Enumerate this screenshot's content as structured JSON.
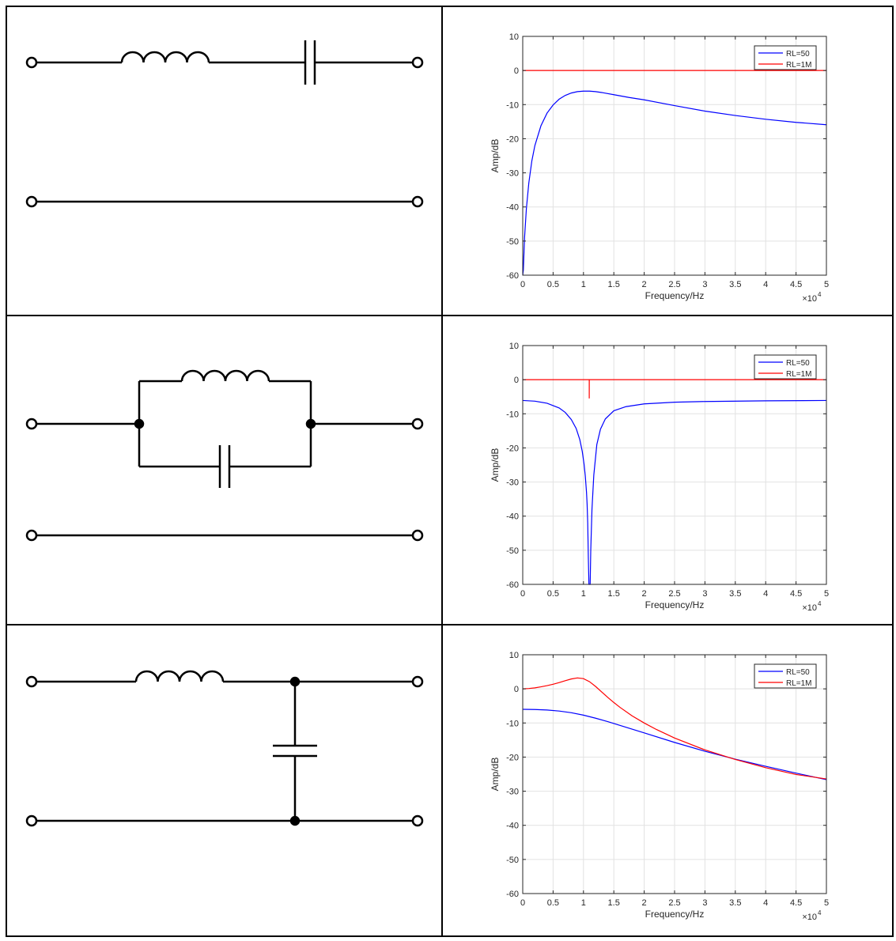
{
  "chart_data": [
    {
      "type": "line",
      "xlabel": "Frequency/Hz",
      "ylabel": "Amp/dB",
      "x_multiplier_label": "×10",
      "x_multiplier_exp": "4",
      "xlim": [
        0,
        50000
      ],
      "ylim": [
        -60,
        10
      ],
      "xticks": [
        0,
        5000,
        10000,
        15000,
        20000,
        25000,
        30000,
        35000,
        40000,
        45000,
        50000
      ],
      "xtick_labels": [
        "0",
        "0.5",
        "1",
        "1.5",
        "2",
        "2.5",
        "3",
        "3.5",
        "4",
        "4.5",
        "5"
      ],
      "yticks": [
        10,
        0,
        -10,
        -20,
        -30,
        -40,
        -50,
        -60
      ],
      "ytick_labels": [
        "10",
        "0",
        "-10",
        "-20",
        "-30",
        "-40",
        "-50",
        "-60"
      ],
      "grid": true,
      "legend_position": "top-right",
      "series": [
        {
          "name": "RL=50",
          "color": "#0000ff",
          "x": [
            0,
            100,
            300,
            600,
            1000,
            1500,
            2000,
            3000,
            4000,
            5000,
            6000,
            7000,
            8000,
            9000,
            10000,
            11000,
            12000,
            13000,
            15000,
            17500,
            20000,
            25000,
            30000,
            35000,
            40000,
            45000,
            50000
          ],
          "y": [
            -60,
            -58.5,
            -49,
            -40.5,
            -33,
            -26.5,
            -22,
            -16.2,
            -12.5,
            -10.1,
            -8.4,
            -7.3,
            -6.6,
            -6.2,
            -6.05,
            -6.05,
            -6.2,
            -6.45,
            -7.1,
            -7.9,
            -8.6,
            -10.3,
            -11.9,
            -13.2,
            -14.3,
            -15.2,
            -15.9
          ]
        },
        {
          "name": "RL=1M",
          "color": "#ff0000",
          "x": [
            0,
            50000
          ],
          "y": [
            0,
            0
          ]
        }
      ]
    },
    {
      "type": "line",
      "xlabel": "Frequency/Hz",
      "ylabel": "Amp/dB",
      "x_multiplier_label": "×10",
      "x_multiplier_exp": "4",
      "xlim": [
        0,
        50000
      ],
      "ylim": [
        -60,
        10
      ],
      "xticks": [
        0,
        5000,
        10000,
        15000,
        20000,
        25000,
        30000,
        35000,
        40000,
        45000,
        50000
      ],
      "xtick_labels": [
        "0",
        "0.5",
        "1",
        "1.5",
        "2",
        "2.5",
        "3",
        "3.5",
        "4",
        "4.5",
        "5"
      ],
      "yticks": [
        10,
        0,
        -10,
        -20,
        -30,
        -40,
        -50,
        -60
      ],
      "ytick_labels": [
        "10",
        "0",
        "-10",
        "-20",
        "-30",
        "-40",
        "-50",
        "-60"
      ],
      "grid": true,
      "legend_position": "top-right",
      "series": [
        {
          "name": "RL=50",
          "color": "#0000ff",
          "x": [
            0,
            2000,
            4000,
            6000,
            7000,
            8000,
            8800,
            9400,
            9800,
            10100,
            10300,
            10500,
            10600,
            10700,
            10800,
            10900,
            11000,
            11100,
            11200,
            11400,
            11700,
            12200,
            12800,
            13600,
            15000,
            17000,
            20000,
            25000,
            30000,
            40000,
            50000
          ],
          "y": [
            -6.1,
            -6.3,
            -6.9,
            -8.3,
            -9.6,
            -11.7,
            -14.3,
            -17.6,
            -21,
            -24.8,
            -28.2,
            -33,
            -36.5,
            -42,
            -52,
            -60,
            -60,
            -60,
            -50,
            -38,
            -28,
            -19,
            -14.5,
            -11.5,
            -9.1,
            -7.9,
            -7.1,
            -6.6,
            -6.4,
            -6.2,
            -6.1
          ]
        },
        {
          "name": "RL=1M",
          "color": "#ff0000",
          "x": [
            0,
            10950,
            10950,
            10950,
            10960,
            50000
          ],
          "y": [
            0,
            0,
            -5.5,
            -5.5,
            0,
            0
          ]
        }
      ]
    },
    {
      "type": "line",
      "xlabel": "Frequency/Hz",
      "ylabel": "Amp/dB",
      "x_multiplier_label": "×10",
      "x_multiplier_exp": "4",
      "xlim": [
        0,
        50000
      ],
      "ylim": [
        -60,
        10
      ],
      "xticks": [
        0,
        5000,
        10000,
        15000,
        20000,
        25000,
        30000,
        35000,
        40000,
        45000,
        50000
      ],
      "xtick_labels": [
        "0",
        "0.5",
        "1",
        "1.5",
        "2",
        "2.5",
        "3",
        "3.5",
        "4",
        "4.5",
        "5"
      ],
      "yticks": [
        10,
        0,
        -10,
        -20,
        -30,
        -40,
        -50,
        -60
      ],
      "ytick_labels": [
        "10",
        "0",
        "-10",
        "-20",
        "-30",
        "-40",
        "-50",
        "-60"
      ],
      "grid": true,
      "legend_position": "top-right",
      "series": [
        {
          "name": "RL=50",
          "color": "#0000ff",
          "x": [
            0,
            2000,
            4000,
            6000,
            8000,
            10000,
            12000,
            14000,
            16000,
            18000,
            20000,
            25000,
            30000,
            35000,
            40000,
            45000,
            50000
          ],
          "y": [
            -6.0,
            -6.05,
            -6.2,
            -6.5,
            -7.0,
            -7.7,
            -8.6,
            -9.6,
            -10.7,
            -11.8,
            -12.9,
            -15.7,
            -18.3,
            -20.6,
            -22.7,
            -24.7,
            -26.6
          ]
        },
        {
          "name": "RL=1M",
          "color": "#ff0000",
          "x": [
            0,
            1000,
            2000,
            3000,
            4000,
            5000,
            6000,
            7000,
            8000,
            9000,
            10000,
            11000,
            12000,
            13000,
            14000,
            15000,
            16000,
            18000,
            20000,
            22000,
            25000,
            30000,
            35000,
            40000,
            45000,
            50000
          ],
          "y": [
            0,
            0.1,
            0.3,
            0.6,
            0.95,
            1.35,
            1.85,
            2.4,
            2.9,
            3.2,
            3.0,
            2.1,
            0.7,
            -0.9,
            -2.5,
            -4.0,
            -5.4,
            -7.9,
            -10.0,
            -11.9,
            -14.4,
            -17.9,
            -20.7,
            -23.1,
            -25.1,
            -26.4
          ]
        }
      ]
    }
  ]
}
